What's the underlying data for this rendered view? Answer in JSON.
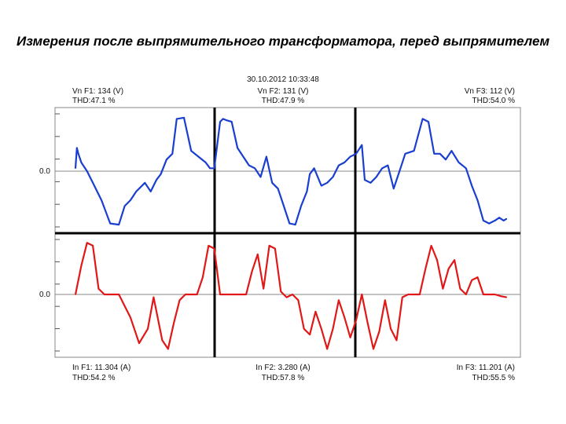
{
  "title": "Измерения после выпрямительного трансформатора, перед выпрямителем",
  "timestamp": "30.10.2012 10:33:48",
  "y_zero_label": "0.0",
  "colors": {
    "voltage": "#1a3fd0",
    "current": "#e01818",
    "grid": "#888888",
    "divider": "#000000"
  },
  "chart_data": {
    "type": "line",
    "title": "Измерения после выпрямительного трансформатора, перед выпрямителем",
    "voltage_labels": [
      {
        "name": "Vn F1: 134 (V)",
        "thd": "THD:47.1 %"
      },
      {
        "name": "Vn F2: 131 (V)",
        "thd": "THD:47.9 %"
      },
      {
        "name": "Vn F3: 112 (V)",
        "thd": "THD:54.0 %"
      }
    ],
    "current_labels": [
      {
        "name": "In F1: 11.304 (A)",
        "thd": "THD:54.2 %"
      },
      {
        "name": "In F2: 3.280 (A)",
        "thd": "THD:57.8 %"
      },
      {
        "name": "In F3: 11.201 (A)",
        "thd": "THD:55.5 %"
      }
    ],
    "x_range": [
      0,
      3
    ],
    "series": [
      {
        "name": "Vn",
        "ylim": [
          -1,
          1
        ],
        "x": [
          0.0,
          0.01,
          0.02,
          0.04,
          0.08,
          0.12,
          0.18,
          0.24,
          0.3,
          0.34,
          0.38,
          0.42,
          0.48,
          0.52,
          0.56,
          0.59,
          0.63,
          0.67,
          0.7,
          0.75,
          0.8,
          0.85,
          0.9,
          0.93,
          0.96,
          1.0,
          1.02,
          1.04,
          1.08,
          1.12,
          1.16,
          1.2,
          1.24,
          1.28,
          1.32,
          1.36,
          1.4,
          1.44,
          1.48,
          1.52,
          1.56,
          1.6,
          1.62,
          1.65,
          1.7,
          1.74,
          1.78,
          1.82,
          1.86,
          1.9,
          1.94,
          1.98,
          2.0,
          2.04,
          2.08,
          2.12,
          2.16,
          2.2,
          2.24,
          2.28,
          2.34,
          2.4,
          2.44,
          2.48,
          2.52,
          2.56,
          2.6,
          2.65,
          2.7,
          2.74,
          2.78,
          2.82,
          2.86,
          2.9,
          2.93,
          2.96,
          2.98
        ],
        "values": [
          0.05,
          0.4,
          0.3,
          0.15,
          0.0,
          -0.2,
          -0.5,
          -0.9,
          -0.92,
          -0.6,
          -0.5,
          -0.35,
          -0.2,
          -0.35,
          -0.15,
          -0.05,
          0.2,
          0.3,
          0.9,
          0.92,
          0.35,
          0.25,
          0.15,
          0.05,
          0.05,
          0.85,
          0.9,
          0.88,
          0.85,
          0.4,
          0.25,
          0.1,
          0.05,
          -0.1,
          0.25,
          -0.2,
          -0.3,
          -0.6,
          -0.9,
          -0.92,
          -0.6,
          -0.35,
          -0.05,
          0.05,
          -0.25,
          -0.2,
          -0.1,
          0.1,
          0.15,
          0.25,
          0.3,
          0.45,
          -0.15,
          -0.2,
          -0.1,
          0.05,
          0.1,
          -0.3,
          0.0,
          0.3,
          0.35,
          0.9,
          0.85,
          0.3,
          0.3,
          0.2,
          0.35,
          0.15,
          0.05,
          -0.25,
          -0.5,
          -0.85,
          -0.9,
          -0.85,
          -0.8,
          -0.85,
          -0.82
        ]
      },
      {
        "name": "In",
        "ylim": [
          -1,
          1
        ],
        "x": [
          0.0,
          0.04,
          0.08,
          0.12,
          0.16,
          0.2,
          0.24,
          0.3,
          0.38,
          0.44,
          0.5,
          0.54,
          0.6,
          0.64,
          0.68,
          0.72,
          0.76,
          0.8,
          0.84,
          0.88,
          0.92,
          0.96,
          1.0,
          1.04,
          1.1,
          1.14,
          1.18,
          1.22,
          1.26,
          1.3,
          1.34,
          1.38,
          1.42,
          1.46,
          1.5,
          1.54,
          1.58,
          1.62,
          1.66,
          1.7,
          1.74,
          1.78,
          1.82,
          1.86,
          1.9,
          1.94,
          1.98,
          2.02,
          2.06,
          2.1,
          2.14,
          2.18,
          2.22,
          2.26,
          2.3,
          2.34,
          2.38,
          2.42,
          2.46,
          2.5,
          2.54,
          2.58,
          2.62,
          2.66,
          2.7,
          2.74,
          2.78,
          2.82,
          2.86,
          2.9,
          2.94,
          2.98
        ],
        "values": [
          0.0,
          0.5,
          0.9,
          0.85,
          0.1,
          0.0,
          0.0,
          0.0,
          -0.4,
          -0.85,
          -0.6,
          -0.05,
          -0.8,
          -0.95,
          -0.5,
          -0.1,
          0.0,
          0.0,
          0.0,
          0.3,
          0.85,
          0.8,
          0.0,
          0.0,
          0.0,
          0.0,
          0.0,
          0.4,
          0.7,
          0.1,
          0.85,
          0.8,
          0.05,
          -0.05,
          0.0,
          -0.1,
          -0.6,
          -0.7,
          -0.3,
          -0.6,
          -0.95,
          -0.6,
          -0.1,
          -0.4,
          -0.75,
          -0.45,
          0.0,
          -0.5,
          -0.95,
          -0.65,
          -0.1,
          -0.6,
          -0.8,
          -0.05,
          0.0,
          0.0,
          0.0,
          0.45,
          0.85,
          0.6,
          0.1,
          0.45,
          0.6,
          0.1,
          0.0,
          0.25,
          0.3,
          0.0,
          0.0,
          0.0,
          -0.03,
          -0.05
        ]
      }
    ]
  }
}
